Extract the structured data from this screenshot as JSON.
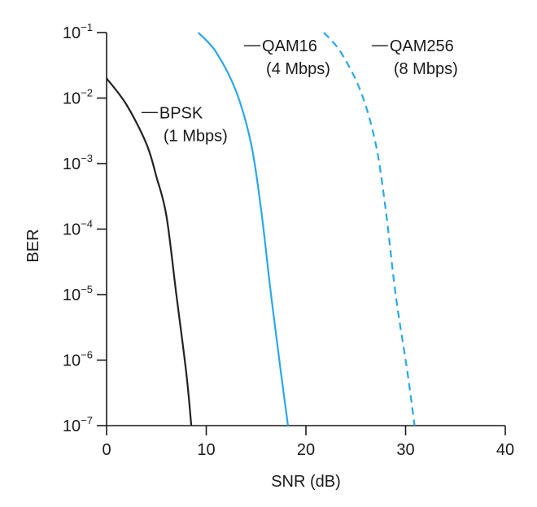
{
  "chart_data": {
    "type": "line",
    "title": "",
    "xlabel": "SNR (dB)",
    "ylabel": "BER",
    "xlim": [
      0,
      40
    ],
    "ylim": [
      1e-07,
      0.1
    ],
    "y_scale": "log",
    "grid": false,
    "x_ticks": [
      {
        "value": 0,
        "label": "0"
      },
      {
        "value": 10,
        "label": "10"
      },
      {
        "value": 20,
        "label": "20"
      },
      {
        "value": 30,
        "label": "30"
      },
      {
        "value": 40,
        "label": "40"
      }
    ],
    "y_ticks": [
      {
        "value": 0.1,
        "base": "10",
        "exp": "−1"
      },
      {
        "value": 0.01,
        "base": "10",
        "exp": "−2"
      },
      {
        "value": 0.001,
        "base": "10",
        "exp": "−3"
      },
      {
        "value": 0.0001,
        "base": "10",
        "exp": "−4"
      },
      {
        "value": 1e-05,
        "base": "10",
        "exp": "−5"
      },
      {
        "value": 1e-06,
        "base": "10",
        "exp": "−6"
      },
      {
        "value": 1e-07,
        "base": "10",
        "exp": "−7"
      }
    ],
    "series": [
      {
        "name": "BPSK",
        "rate": "(1 Mbps)",
        "color": "#222222",
        "style": "solid",
        "x": [
          0,
          2,
          4,
          5,
          6,
          7,
          8,
          8.5
        ],
        "y": [
          0.02,
          0.0079,
          0.002,
          0.00063,
          0.00016,
          1e-05,
          6.3e-07,
          1e-07
        ]
      },
      {
        "name": "QAM16",
        "rate": "(4 Mbps)",
        "color": "#29a8e8",
        "style": "solid",
        "x": [
          9.2,
          11,
          13,
          14.5,
          15.5,
          16.5,
          17.5,
          18.2
        ],
        "y": [
          0.1,
          0.05,
          0.0126,
          0.002,
          0.0002,
          1e-05,
          6.3e-07,
          1e-07
        ]
      },
      {
        "name": "QAM256",
        "rate": "(8 Mbps)",
        "color": "#29a8e8",
        "style": "dashed",
        "x": [
          21.8,
          23.5,
          25.5,
          27,
          28,
          29,
          30.2,
          30.9
        ],
        "y": [
          0.1,
          0.05,
          0.0126,
          0.002,
          0.0002,
          1e-05,
          6.3e-07,
          1e-07
        ]
      }
    ],
    "annotations": [
      {
        "series": "BPSK",
        "x": 3.5,
        "y": 0.006
      },
      {
        "series": "QAM16",
        "x": 13.8,
        "y": 0.063
      },
      {
        "series": "QAM256",
        "x": 26.6,
        "y": 0.063
      }
    ]
  }
}
